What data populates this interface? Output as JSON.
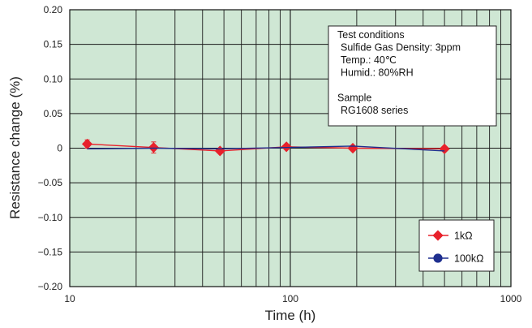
{
  "chart_data": {
    "type": "line",
    "title": "",
    "xlabel": "Time (h)",
    "ylabel": "Resistance change (%)",
    "x_scale": "log",
    "xlim": [
      10,
      1000
    ],
    "ylim": [
      -0.2,
      0.2
    ],
    "x_tick_labels": [
      "10",
      "100",
      "1000"
    ],
    "y_tick_labels": [
      "0.20",
      "0.15",
      "0.10",
      "0.05",
      "0",
      "−0.05",
      "−0.10",
      "−0.15",
      "−0.20"
    ],
    "grid": true,
    "background_color": "#cfe7d4",
    "series": [
      {
        "name": "1kΩ",
        "color": "#e8212b",
        "marker": "diamond",
        "x": [
          12,
          24,
          48,
          96,
          192,
          500
        ],
        "y": [
          0.006,
          0.001,
          -0.004,
          0.002,
          0.0,
          -0.001
        ],
        "error": [
          0.006,
          0.008,
          0.0,
          0.0,
          0.0,
          0.0
        ]
      },
      {
        "name": "100kΩ",
        "color": "#1f2f8f",
        "marker": "circle",
        "x": [
          12,
          24,
          48,
          96,
          192,
          500
        ],
        "y": [
          -0.001,
          0.0,
          -0.001,
          0.001,
          0.003,
          -0.004
        ],
        "error": [
          0.0,
          0.0,
          0.0,
          0.0,
          0.0,
          0.0
        ]
      }
    ],
    "annotation": {
      "lines": [
        "Test conditions",
        "Sulfide Gas Density: 3ppm",
        "Temp.: 40℃",
        "Humid.: 80%RH",
        "",
        "Sample",
        "RG1608 series"
      ]
    },
    "legend_position": "bottom-right"
  }
}
